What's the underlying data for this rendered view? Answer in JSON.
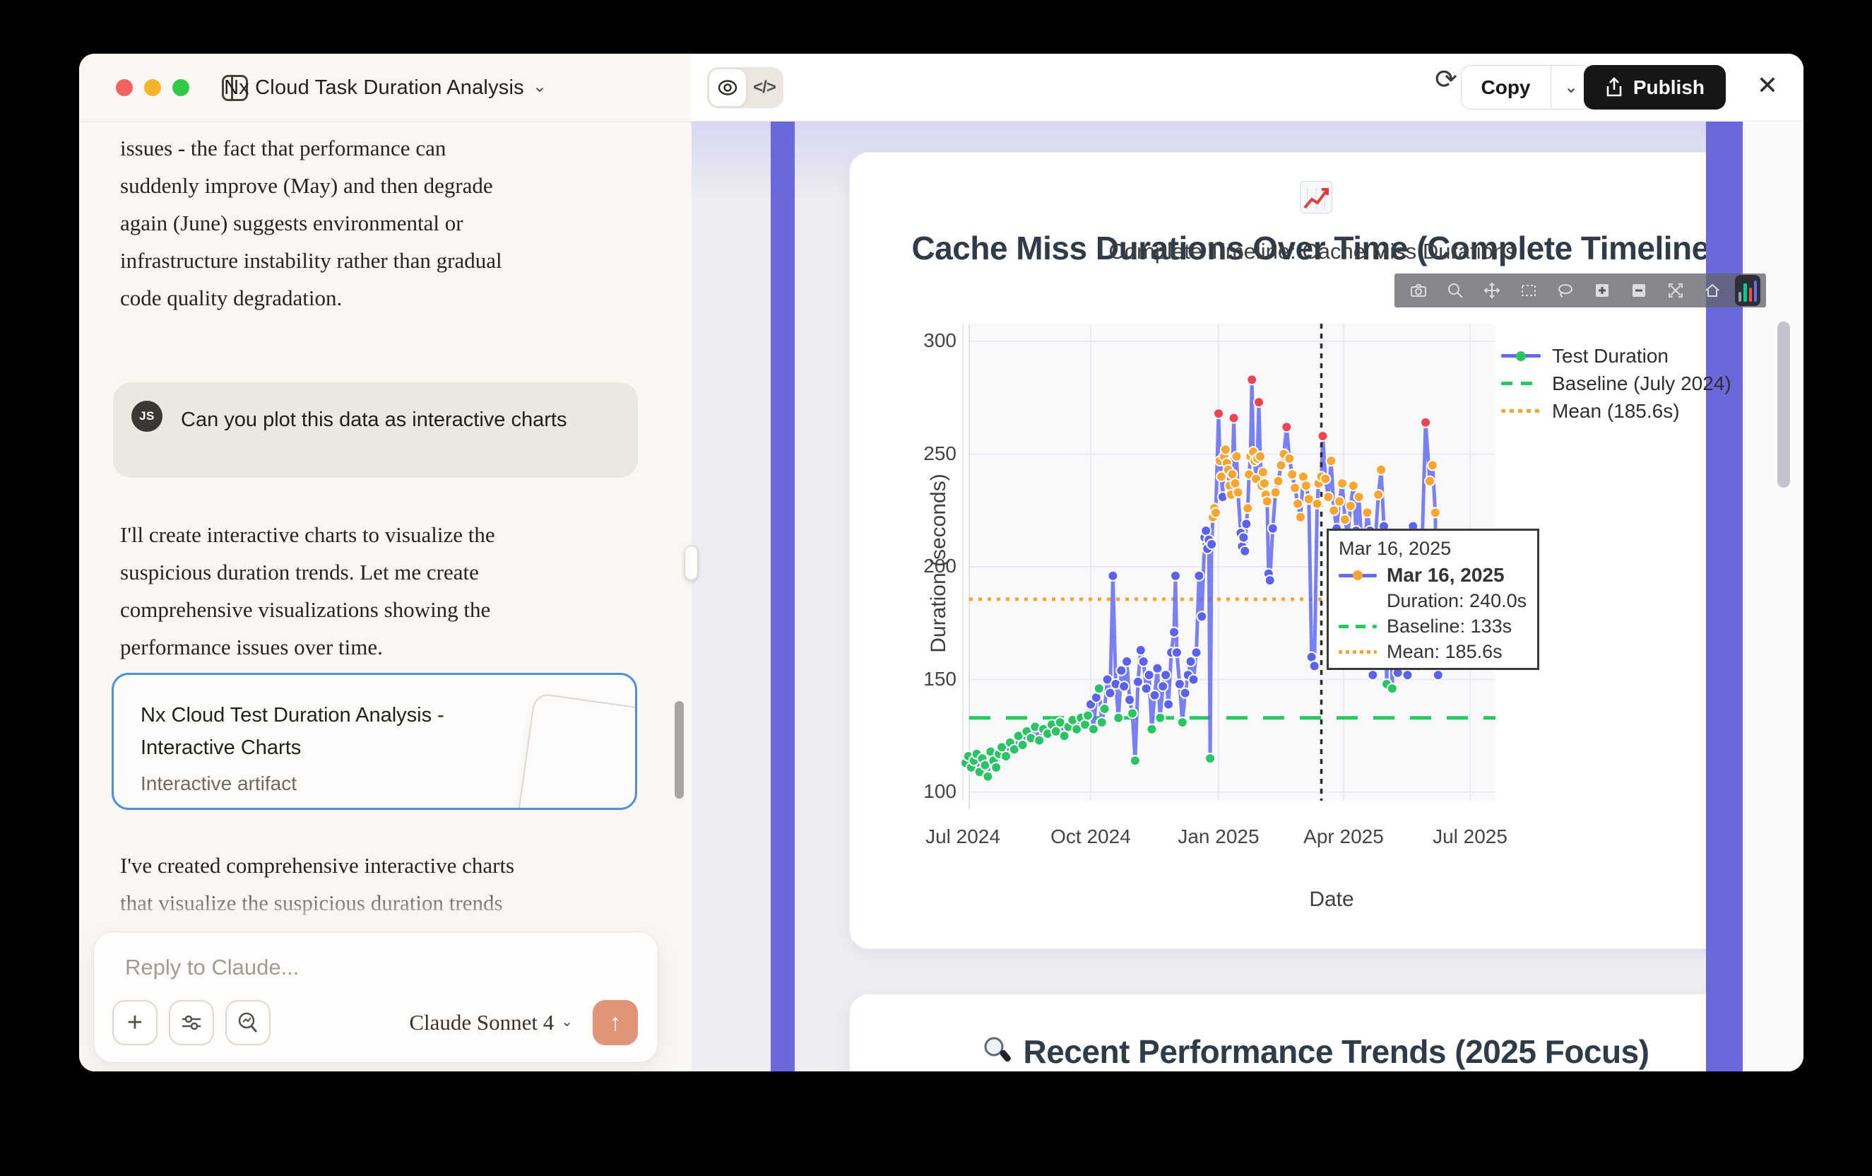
{
  "window": {
    "title": "Nx Cloud Task Duration Analysis",
    "traffic_lights": {
      "close": "#f4635e",
      "minimize": "#f5b42e",
      "zoom": "#32c946"
    }
  },
  "chat": {
    "assistant_paragraph_top": "issues - the fact that performance can\nsuddenly improve (May) and then degrade\nagain (June) suggests environmental or\ninfrastructure instability rather than gradual\ncode quality degradation.",
    "user_message": {
      "avatar_initials": "JS",
      "text": "Can you plot this data as interactive charts"
    },
    "assistant_paragraph_mid": "I'll create interactive charts to visualize the\nsuspicious duration trends. Let me create\ncomprehensive visualizations showing the\nperformance issues over time.",
    "artifact_card": {
      "title": "Nx Cloud Test Duration Analysis - Interactive Charts",
      "subtitle": "Interactive artifact"
    },
    "assistant_paragraph_bottom": "I've created comprehensive interactive charts\nthat visualize the suspicious duration trends\nin your Nx Cloud test data. Here's what the",
    "input": {
      "placeholder": "Reply to Claude...",
      "model_selector": "Claude Sonnet 4",
      "send_icon": "↑",
      "plus_icon": "+"
    }
  },
  "artifact_header": {
    "code_toggle_label": "</>",
    "refresh_icon": "⟳",
    "copy_label": "Copy",
    "copy_chevron": "⌄",
    "publish_label": "Publish",
    "close_icon": "✕",
    "publish_bg": "#17171a"
  },
  "artifact_panel": {
    "accent_purple": "#6b67dc",
    "chart_section_heading": "Cache Miss Durations Over Time (Complete Timeline)",
    "trends_section_heading": "Recent Performance Trends (2025 Focus)"
  },
  "chart_data": {
    "type": "line+scatter",
    "title": "Complete Timeline: Cache Miss Durations",
    "xlabel": "Date",
    "ylabel": "Duration (seconds)",
    "x_ticks": [
      {
        "label": "Jul 2024",
        "day": 0
      },
      {
        "label": "Oct 2024",
        "day": 92
      },
      {
        "label": "Jan 2025",
        "day": 184
      },
      {
        "label": "Apr 2025",
        "day": 274
      },
      {
        "label": "Jul 2025",
        "day": 365
      }
    ],
    "y_ticks": [
      100,
      150,
      200,
      250,
      300
    ],
    "ylim": [
      95,
      312
    ],
    "xlim_days": [
      -17,
      382
    ],
    "grid": true,
    "legend_position": "top-right",
    "legend": [
      {
        "label": "Test Duration",
        "style": "line-dot",
        "line_color": "#636af2",
        "dot_color": "#2bc465"
      },
      {
        "label": "Baseline (July 2024)",
        "style": "dashed",
        "line_color": "#27c862"
      },
      {
        "label": "Mean (185.6s)",
        "style": "dotted",
        "line_color": "#fba531"
      }
    ],
    "baseline_value": 133,
    "mean_value": 185.6,
    "vline_day": 258,
    "line_color": "#636af2",
    "marker_colors": {
      "g": "#2bc465",
      "b": "#5b62ee",
      "o": "#fba531",
      "r": "#ee4454"
    },
    "points": [
      [
        2,
        113,
        "g"
      ],
      [
        4,
        116,
        "g"
      ],
      [
        6,
        111,
        "g"
      ],
      [
        8,
        114,
        "g"
      ],
      [
        10,
        117,
        "g"
      ],
      [
        12,
        109,
        "g"
      ],
      [
        14,
        115,
        "g"
      ],
      [
        16,
        112,
        "g"
      ],
      [
        18,
        107,
        "g"
      ],
      [
        20,
        118,
        "g"
      ],
      [
        22,
        114,
        "g"
      ],
      [
        24,
        111,
        "g"
      ],
      [
        26,
        117,
        "g"
      ],
      [
        28,
        120,
        "g"
      ],
      [
        31,
        116,
        "g"
      ],
      [
        34,
        122,
        "g"
      ],
      [
        37,
        119,
        "g"
      ],
      [
        40,
        125,
        "g"
      ],
      [
        43,
        121,
        "g"
      ],
      [
        46,
        127,
        "g"
      ],
      [
        49,
        124,
        "g"
      ],
      [
        52,
        129,
        "g"
      ],
      [
        55,
        123,
        "g"
      ],
      [
        58,
        128,
        "g"
      ],
      [
        61,
        126,
        "g"
      ],
      [
        64,
        130,
        "g"
      ],
      [
        67,
        127,
        "g"
      ],
      [
        70,
        131,
        "g"
      ],
      [
        73,
        125,
        "g"
      ],
      [
        76,
        129,
        "g"
      ],
      [
        79,
        132,
        "g"
      ],
      [
        82,
        128,
        "g"
      ],
      [
        85,
        133,
        "g"
      ],
      [
        88,
        130,
        "g"
      ],
      [
        90,
        134,
        "g"
      ],
      [
        92,
        139,
        "b"
      ],
      [
        94,
        128,
        "g"
      ],
      [
        96,
        142,
        "b"
      ],
      [
        98,
        146,
        "g"
      ],
      [
        100,
        131,
        "g"
      ],
      [
        102,
        137,
        "g"
      ],
      [
        104,
        150,
        "b"
      ],
      [
        106,
        144,
        "b"
      ],
      [
        108,
        196,
        "b"
      ],
      [
        110,
        148,
        "b"
      ],
      [
        112,
        133,
        "g"
      ],
      [
        114,
        154,
        "b"
      ],
      [
        116,
        147,
        "b"
      ],
      [
        118,
        158,
        "b"
      ],
      [
        120,
        141,
        "b"
      ],
      [
        122,
        135,
        "g"
      ],
      [
        124,
        114,
        "g"
      ],
      [
        126,
        149,
        "b"
      ],
      [
        128,
        163,
        "b"
      ],
      [
        130,
        158,
        "b"
      ],
      [
        132,
        146,
        "b"
      ],
      [
        134,
        152,
        "b"
      ],
      [
        136,
        128,
        "g"
      ],
      [
        138,
        143,
        "b"
      ],
      [
        140,
        155,
        "b"
      ],
      [
        142,
        133,
        "g"
      ],
      [
        144,
        147,
        "b"
      ],
      [
        146,
        152,
        "b"
      ],
      [
        148,
        139,
        "b"
      ],
      [
        150,
        162,
        "b"
      ],
      [
        152,
        171,
        "b"
      ],
      [
        153,
        196,
        "b"
      ],
      [
        154,
        162,
        "b"
      ],
      [
        156,
        148,
        "b"
      ],
      [
        158,
        131,
        "g"
      ],
      [
        160,
        144,
        "b"
      ],
      [
        162,
        152,
        "b"
      ],
      [
        164,
        158,
        "b"
      ],
      [
        166,
        150,
        "b"
      ],
      [
        168,
        162,
        "b"
      ],
      [
        170,
        196,
        "b"
      ],
      [
        172,
        178,
        "b"
      ],
      [
        174,
        213,
        "b"
      ],
      [
        175,
        216,
        "b"
      ],
      [
        176,
        208,
        "b"
      ],
      [
        177,
        212,
        "b"
      ],
      [
        178,
        115,
        "g"
      ],
      [
        179,
        210,
        "b"
      ],
      [
        180,
        222,
        "o"
      ],
      [
        181,
        226,
        "o"
      ],
      [
        182,
        224,
        "o"
      ],
      [
        184,
        268,
        "r"
      ],
      [
        185,
        247,
        "o"
      ],
      [
        186,
        240,
        "o"
      ],
      [
        187,
        231,
        "b"
      ],
      [
        188,
        249,
        "o"
      ],
      [
        189,
        252,
        "o"
      ],
      [
        190,
        246,
        "o"
      ],
      [
        191,
        243,
        "o"
      ],
      [
        192,
        236,
        "o"
      ],
      [
        193,
        232,
        "o"
      ],
      [
        194,
        241,
        "o"
      ],
      [
        195,
        266,
        "r"
      ],
      [
        196,
        237,
        "o"
      ],
      [
        197,
        249,
        "o"
      ],
      [
        198,
        233,
        "o"
      ],
      [
        200,
        215,
        "b"
      ],
      [
        201,
        209,
        "b"
      ],
      [
        202,
        213,
        "b"
      ],
      [
        203,
        207,
        "b"
      ],
      [
        204,
        219,
        "b"
      ],
      [
        205,
        226,
        "o"
      ],
      [
        206,
        241,
        "o"
      ],
      [
        207,
        249,
        "o"
      ],
      [
        208,
        283,
        "r"
      ],
      [
        209,
        251,
        "o"
      ],
      [
        210,
        247,
        "o"
      ],
      [
        211,
        239,
        "o"
      ],
      [
        212,
        248,
        "o"
      ],
      [
        213,
        273,
        "r"
      ],
      [
        214,
        249,
        "o"
      ],
      [
        215,
        236,
        "o"
      ],
      [
        216,
        242,
        "o"
      ],
      [
        217,
        237,
        "o"
      ],
      [
        218,
        232,
        "o"
      ],
      [
        219,
        229,
        "o"
      ],
      [
        220,
        197,
        "b"
      ],
      [
        221,
        194,
        "b"
      ],
      [
        223,
        217,
        "b"
      ],
      [
        225,
        233,
        "o"
      ],
      [
        227,
        238,
        "o"
      ],
      [
        229,
        245,
        "o"
      ],
      [
        231,
        250,
        "o"
      ],
      [
        233,
        262,
        "r"
      ],
      [
        235,
        248,
        "o"
      ],
      [
        237,
        241,
        "o"
      ],
      [
        239,
        235,
        "o"
      ],
      [
        241,
        228,
        "o"
      ],
      [
        243,
        222,
        "o"
      ],
      [
        245,
        240,
        "o"
      ],
      [
        247,
        236,
        "o"
      ],
      [
        249,
        230,
        "o"
      ],
      [
        251,
        160,
        "b"
      ],
      [
        253,
        156,
        "b"
      ],
      [
        255,
        228,
        "o"
      ],
      [
        256,
        237,
        "o"
      ],
      [
        258,
        240,
        "o"
      ],
      [
        259,
        258,
        "r"
      ],
      [
        261,
        239,
        "o"
      ],
      [
        263,
        231,
        "o"
      ],
      [
        265,
        247,
        "o"
      ],
      [
        267,
        225,
        "o"
      ],
      [
        269,
        217,
        "b"
      ],
      [
        271,
        229,
        "o"
      ],
      [
        273,
        237,
        "o"
      ],
      [
        275,
        221,
        "o"
      ],
      [
        277,
        214,
        "b"
      ],
      [
        279,
        227,
        "o"
      ],
      [
        281,
        236,
        "o"
      ],
      [
        283,
        216,
        "b"
      ],
      [
        285,
        231,
        "o"
      ],
      [
        287,
        210,
        "b"
      ],
      [
        289,
        205,
        "b"
      ],
      [
        291,
        224,
        "o"
      ],
      [
        293,
        216,
        "b"
      ],
      [
        295,
        152,
        "b"
      ],
      [
        297,
        213,
        "b"
      ],
      [
        299,
        232,
        "o"
      ],
      [
        301,
        243,
        "o"
      ],
      [
        303,
        218,
        "b"
      ],
      [
        305,
        148,
        "g"
      ],
      [
        307,
        209,
        "b"
      ],
      [
        309,
        146,
        "g"
      ],
      [
        311,
        215,
        "b"
      ],
      [
        313,
        153,
        "b"
      ],
      [
        316,
        208,
        "b"
      ],
      [
        320,
        152,
        "b"
      ],
      [
        324,
        218,
        "b"
      ],
      [
        328,
        156,
        "b"
      ],
      [
        333,
        264,
        "r"
      ],
      [
        336,
        238,
        "o"
      ],
      [
        338,
        245,
        "o"
      ],
      [
        340,
        224,
        "o"
      ],
      [
        342,
        152,
        "b"
      ]
    ],
    "tooltip": {
      "date": "Mar 16, 2025",
      "series_date_bold": "Mar 16, 2025",
      "duration": "Duration: 240.0s",
      "baseline": "Baseline: 133s",
      "mean": "Mean: 185.6s"
    },
    "modebar_icons": [
      "camera",
      "zoom",
      "pan",
      "box-select",
      "lasso",
      "zoom-in",
      "zoom-out",
      "autoscale",
      "reset-home",
      "plotly-logo"
    ]
  }
}
